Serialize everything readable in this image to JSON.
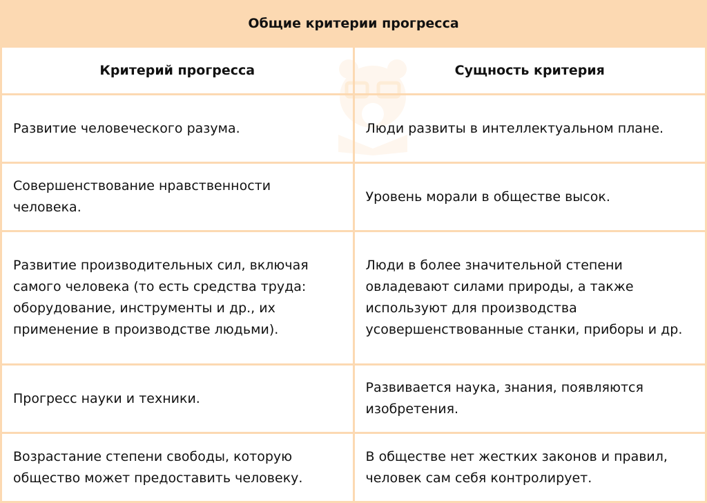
{
  "table": {
    "title": "Общие критерии прогресса",
    "headers": [
      "Критерий прогресса",
      "Сущность критерия"
    ],
    "rows": [
      [
        "Развитие человеческого разума.",
        "Люди развиты в интеллектуальном плане."
      ],
      [
        "Совершенствование нравственности человека.",
        "Уровень морали в обществе высок."
      ],
      [
        "Развитие производительных сил, включая самого человека (то есть средства труда: оборудование, инструменты и др., их применение в производстве людьми).",
        "Люди в более значительной степени овладевают силами природы, а также используют для производства усовершенствованные станки, приборы и др."
      ],
      [
        "Прогресс науки и техники.",
        "Развивается наука, знания, появляются изобретения."
      ],
      [
        "Возрастание степени свободы, которую общество может предоставить человеку.",
        "В обществе нет жестких законов и правил, человек сам себя контролирует."
      ]
    ]
  },
  "colors": {
    "accent": "#fcd9b2"
  }
}
